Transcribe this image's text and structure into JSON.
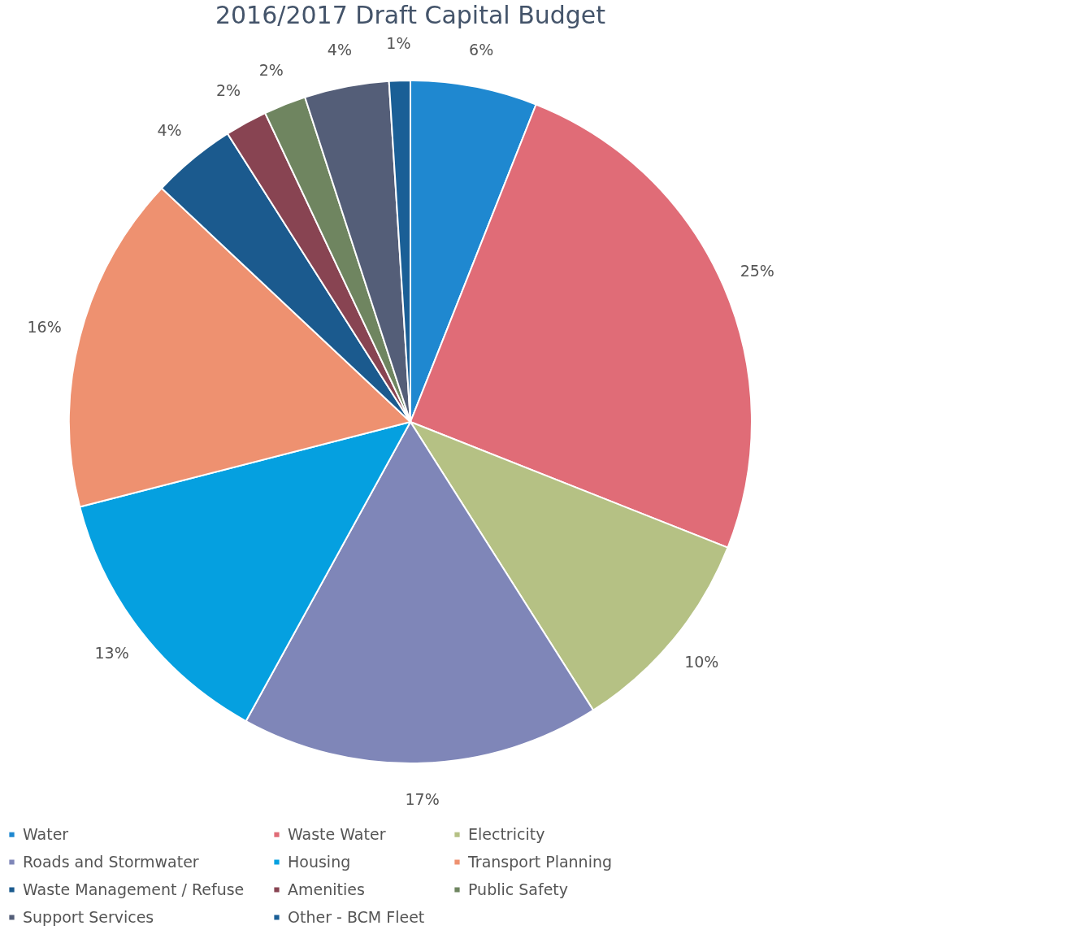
{
  "chart_data": {
    "type": "pie",
    "title": "2016/2017  Draft Capital Budget",
    "categories": [
      "Water",
      "Waste Water",
      "Electricity",
      "Roads and Stormwater",
      "Housing",
      "Transport Planning",
      "Waste Management / Refuse",
      "Amenities",
      "Public Safety",
      "Support Services",
      "Other - BCM Fleet"
    ],
    "values": [
      6,
      25,
      10,
      17,
      13,
      16,
      4,
      2,
      2,
      4,
      1
    ],
    "value_labels": [
      "6%",
      "25%",
      "10%",
      "17%",
      "13%",
      "16%",
      "4%",
      "2%",
      "2%",
      "4%",
      "1%"
    ],
    "colors": [
      "#1f88d0",
      "#e06c77",
      "#b5c184",
      "#7f86b8",
      "#05a0e0",
      "#ee9170",
      "#1b5a8e",
      "#884452",
      "#6f8560",
      "#545e78",
      "#1a5f96"
    ],
    "legend": "bottom"
  }
}
